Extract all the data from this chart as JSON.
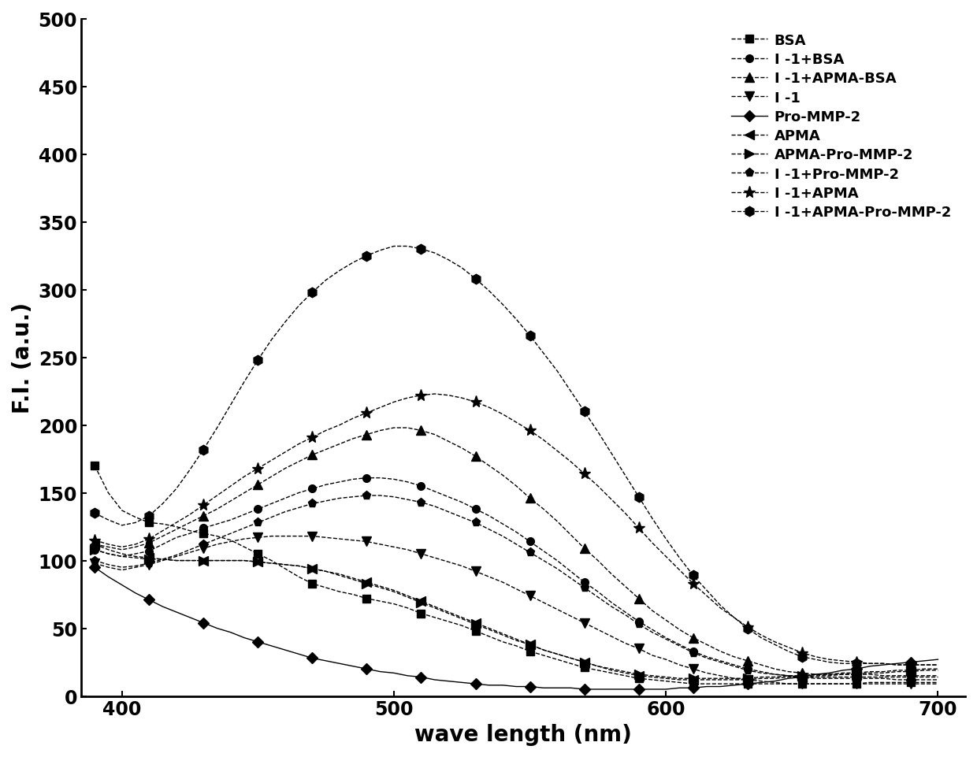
{
  "xlabel": "wave length (nm)",
  "ylabel": "F.I. (a.u.)",
  "xlim": [
    385,
    710
  ],
  "ylim": [
    0,
    500
  ],
  "yticks": [
    0,
    50,
    100,
    150,
    200,
    250,
    300,
    350,
    400,
    450,
    500
  ],
  "xticks": [
    400,
    500,
    600,
    700
  ],
  "background_color": "#ffffff",
  "series": [
    {
      "label": "BSA",
      "marker": "s",
      "linestyle": "--",
      "x": [
        390,
        395,
        400,
        405,
        410,
        415,
        420,
        425,
        430,
        435,
        440,
        445,
        450,
        455,
        460,
        465,
        470,
        475,
        480,
        485,
        490,
        495,
        500,
        505,
        510,
        515,
        520,
        525,
        530,
        535,
        540,
        545,
        550,
        555,
        560,
        565,
        570,
        575,
        580,
        585,
        590,
        595,
        600,
        605,
        610,
        615,
        620,
        625,
        630,
        635,
        640,
        645,
        650,
        655,
        660,
        665,
        670,
        675,
        680,
        685,
        690,
        695,
        700
      ],
      "y": [
        170,
        150,
        137,
        132,
        128,
        127,
        125,
        122,
        120,
        118,
        115,
        110,
        105,
        100,
        94,
        88,
        83,
        80,
        77,
        75,
        72,
        70,
        68,
        65,
        61,
        58,
        55,
        52,
        48,
        44,
        40,
        37,
        33,
        30,
        27,
        24,
        21,
        19,
        17,
        15,
        13,
        12,
        11,
        10,
        9,
        9,
        9,
        9,
        9,
        9,
        9,
        9,
        9,
        9,
        9,
        9,
        9,
        10,
        10,
        10,
        10,
        10,
        10
      ]
    },
    {
      "label": "Ⅰ -1+BSA",
      "marker": "o",
      "linestyle": "--",
      "x": [
        390,
        395,
        400,
        405,
        410,
        415,
        420,
        425,
        430,
        435,
        440,
        445,
        450,
        455,
        460,
        465,
        470,
        475,
        480,
        485,
        490,
        495,
        500,
        505,
        510,
        515,
        520,
        525,
        530,
        535,
        540,
        545,
        550,
        555,
        560,
        565,
        570,
        575,
        580,
        585,
        590,
        595,
        600,
        605,
        610,
        615,
        620,
        625,
        630,
        635,
        640,
        645,
        650,
        655,
        660,
        665,
        670,
        675,
        680,
        685,
        690,
        695,
        700
      ],
      "y": [
        108,
        105,
        103,
        105,
        107,
        112,
        117,
        120,
        124,
        127,
        130,
        134,
        138,
        142,
        146,
        150,
        153,
        156,
        158,
        160,
        161,
        161,
        160,
        158,
        155,
        151,
        147,
        143,
        138,
        133,
        127,
        121,
        114,
        107,
        100,
        92,
        84,
        77,
        69,
        62,
        55,
        49,
        43,
        38,
        33,
        29,
        26,
        23,
        20,
        18,
        16,
        15,
        14,
        13,
        13,
        13,
        13,
        13,
        13,
        12,
        12,
        12,
        12
      ]
    },
    {
      "label": "Ⅰ -1+APMA-BSA",
      "marker": "^",
      "linestyle": "--",
      "x": [
        390,
        395,
        400,
        405,
        410,
        415,
        420,
        425,
        430,
        435,
        440,
        445,
        450,
        455,
        460,
        465,
        470,
        475,
        480,
        485,
        490,
        495,
        500,
        505,
        510,
        515,
        520,
        525,
        530,
        535,
        540,
        545,
        550,
        555,
        560,
        565,
        570,
        575,
        580,
        585,
        590,
        595,
        600,
        605,
        610,
        615,
        620,
        625,
        630,
        635,
        640,
        645,
        650,
        655,
        660,
        665,
        670,
        675,
        680,
        685,
        690,
        695,
        700
      ],
      "y": [
        112,
        110,
        108,
        110,
        113,
        118,
        123,
        128,
        133,
        138,
        144,
        150,
        156,
        162,
        168,
        173,
        178,
        182,
        186,
        190,
        193,
        196,
        198,
        198,
        196,
        193,
        188,
        183,
        177,
        170,
        163,
        155,
        146,
        138,
        129,
        119,
        109,
        100,
        90,
        81,
        72,
        63,
        56,
        49,
        43,
        38,
        33,
        29,
        26,
        23,
        20,
        18,
        17,
        16,
        16,
        16,
        16,
        16,
        15,
        15,
        15,
        15,
        15
      ]
    },
    {
      "label": "Ⅰ -1",
      "marker": "v",
      "linestyle": "--",
      "x": [
        390,
        395,
        400,
        405,
        410,
        415,
        420,
        425,
        430,
        435,
        440,
        445,
        450,
        455,
        460,
        465,
        470,
        475,
        480,
        485,
        490,
        495,
        500,
        505,
        510,
        515,
        520,
        525,
        530,
        535,
        540,
        545,
        550,
        555,
        560,
        565,
        570,
        575,
        580,
        585,
        590,
        595,
        600,
        605,
        610,
        615,
        620,
        625,
        630,
        635,
        640,
        645,
        650,
        655,
        660,
        665,
        670,
        675,
        680,
        685,
        690,
        695,
        700
      ],
      "y": [
        98,
        95,
        93,
        95,
        97,
        100,
        103,
        106,
        109,
        112,
        114,
        116,
        117,
        118,
        118,
        118,
        118,
        117,
        116,
        115,
        114,
        112,
        110,
        108,
        105,
        102,
        99,
        96,
        92,
        88,
        84,
        79,
        74,
        69,
        64,
        59,
        54,
        49,
        44,
        39,
        35,
        30,
        27,
        23,
        20,
        17,
        15,
        13,
        12,
        11,
        10,
        9,
        9,
        9,
        9,
        9,
        9,
        9,
        9,
        9,
        9,
        9,
        9
      ]
    },
    {
      "label": "Pro-MMP-2",
      "marker": "D",
      "linestyle": "-",
      "x": [
        390,
        395,
        400,
        405,
        410,
        415,
        420,
        425,
        430,
        435,
        440,
        445,
        450,
        455,
        460,
        465,
        470,
        475,
        480,
        485,
        490,
        495,
        500,
        505,
        510,
        515,
        520,
        525,
        530,
        535,
        540,
        545,
        550,
        555,
        560,
        565,
        570,
        575,
        580,
        585,
        590,
        595,
        600,
        605,
        610,
        615,
        620,
        625,
        630,
        635,
        640,
        645,
        650,
        655,
        660,
        665,
        670,
        675,
        680,
        685,
        690,
        695,
        700
      ],
      "y": [
        95,
        88,
        82,
        76,
        71,
        66,
        62,
        58,
        54,
        50,
        47,
        43,
        40,
        37,
        34,
        31,
        28,
        26,
        24,
        22,
        20,
        18,
        17,
        15,
        14,
        12,
        11,
        10,
        9,
        8,
        8,
        7,
        7,
        6,
        6,
        6,
        5,
        5,
        5,
        5,
        5,
        5,
        5,
        6,
        6,
        7,
        7,
        8,
        9,
        10,
        11,
        13,
        14,
        16,
        17,
        19,
        20,
        22,
        23,
        24,
        25,
        26,
        27
      ]
    },
    {
      "label": "APMA",
      "marker": "<",
      "linestyle": "--",
      "x": [
        390,
        395,
        400,
        405,
        410,
        415,
        420,
        425,
        430,
        435,
        440,
        445,
        450,
        455,
        460,
        465,
        470,
        475,
        480,
        485,
        490,
        495,
        500,
        505,
        510,
        515,
        520,
        525,
        530,
        535,
        540,
        545,
        550,
        555,
        560,
        565,
        570,
        575,
        580,
        585,
        590,
        595,
        600,
        605,
        610,
        615,
        620,
        625,
        630,
        635,
        640,
        645,
        650,
        655,
        660,
        665,
        670,
        675,
        680,
        685,
        690,
        695,
        700
      ],
      "y": [
        112,
        108,
        105,
        103,
        102,
        101,
        100,
        100,
        100,
        100,
        100,
        100,
        99,
        98,
        97,
        96,
        94,
        92,
        90,
        87,
        84,
        81,
        78,
        74,
        70,
        66,
        62,
        58,
        54,
        50,
        46,
        42,
        38,
        34,
        31,
        28,
        25,
        22,
        19,
        17,
        15,
        14,
        13,
        12,
        12,
        12,
        12,
        12,
        12,
        13,
        13,
        14,
        14,
        15,
        15,
        16,
        16,
        17,
        17,
        18,
        18,
        19,
        19
      ]
    },
    {
      "label": "APMA-Pro-MMP-2",
      "marker": ">",
      "linestyle": "--",
      "x": [
        390,
        395,
        400,
        405,
        410,
        415,
        420,
        425,
        430,
        435,
        440,
        445,
        450,
        455,
        460,
        465,
        470,
        475,
        480,
        485,
        490,
        495,
        500,
        505,
        510,
        515,
        520,
        525,
        530,
        535,
        540,
        545,
        550,
        555,
        560,
        565,
        570,
        575,
        580,
        585,
        590,
        595,
        600,
        605,
        610,
        615,
        620,
        625,
        630,
        635,
        640,
        645,
        650,
        655,
        660,
        665,
        670,
        675,
        680,
        685,
        690,
        695,
        700
      ],
      "y": [
        108,
        105,
        103,
        102,
        101,
        101,
        100,
        100,
        100,
        100,
        100,
        100,
        99,
        98,
        97,
        96,
        94,
        92,
        89,
        86,
        83,
        80,
        77,
        73,
        69,
        65,
        61,
        57,
        53,
        49,
        45,
        41,
        38,
        34,
        31,
        28,
        25,
        22,
        20,
        18,
        16,
        15,
        14,
        13,
        13,
        13,
        13,
        13,
        13,
        14,
        14,
        15,
        15,
        16,
        16,
        17,
        17,
        18,
        18,
        19,
        19,
        20,
        20
      ]
    },
    {
      "label": "Ⅰ -1+Pro-MMP-2",
      "marker": "p",
      "linestyle": "--",
      "x": [
        390,
        395,
        400,
        405,
        410,
        415,
        420,
        425,
        430,
        435,
        440,
        445,
        450,
        455,
        460,
        465,
        470,
        475,
        480,
        485,
        490,
        495,
        500,
        505,
        510,
        515,
        520,
        525,
        530,
        535,
        540,
        545,
        550,
        555,
        560,
        565,
        570,
        575,
        580,
        585,
        590,
        595,
        600,
        605,
        610,
        615,
        620,
        625,
        630,
        635,
        640,
        645,
        650,
        655,
        660,
        665,
        670,
        675,
        680,
        685,
        690,
        695,
        700
      ],
      "y": [
        100,
        97,
        95,
        96,
        98,
        101,
        104,
        108,
        112,
        116,
        120,
        124,
        128,
        132,
        136,
        139,
        142,
        144,
        146,
        147,
        148,
        148,
        147,
        145,
        143,
        140,
        136,
        132,
        128,
        123,
        118,
        112,
        106,
        100,
        94,
        87,
        80,
        73,
        66,
        60,
        53,
        47,
        42,
        37,
        32,
        28,
        25,
        22,
        19,
        17,
        16,
        15,
        14,
        14,
        14,
        14,
        14,
        14,
        14,
        14,
        14,
        14,
        14
      ]
    },
    {
      "label": "Ⅰ -1+APMA",
      "marker": "*",
      "linestyle": "--",
      "x": [
        390,
        395,
        400,
        405,
        410,
        415,
        420,
        425,
        430,
        435,
        440,
        445,
        450,
        455,
        460,
        465,
        470,
        475,
        480,
        485,
        490,
        495,
        500,
        505,
        510,
        515,
        520,
        525,
        530,
        535,
        540,
        545,
        550,
        555,
        560,
        565,
        570,
        575,
        580,
        585,
        590,
        595,
        600,
        605,
        610,
        615,
        620,
        625,
        630,
        635,
        640,
        645,
        650,
        655,
        660,
        665,
        670,
        675,
        680,
        685,
        690,
        695,
        700
      ],
      "y": [
        115,
        112,
        110,
        112,
        116,
        122,
        128,
        134,
        141,
        148,
        155,
        162,
        168,
        174,
        180,
        186,
        191,
        196,
        200,
        205,
        209,
        213,
        217,
        220,
        222,
        223,
        222,
        220,
        217,
        213,
        208,
        202,
        196,
        189,
        181,
        173,
        164,
        155,
        145,
        135,
        124,
        113,
        103,
        93,
        83,
        74,
        65,
        58,
        51,
        45,
        40,
        36,
        32,
        29,
        27,
        26,
        25,
        24,
        24,
        23,
        23,
        23,
        23
      ]
    },
    {
      "label": "Ⅰ -1+APMA-Pro-MMP-2",
      "marker": "h",
      "linestyle": "--",
      "x": [
        390,
        395,
        400,
        405,
        410,
        415,
        420,
        425,
        430,
        435,
        440,
        445,
        450,
        455,
        460,
        465,
        470,
        475,
        480,
        485,
        490,
        495,
        500,
        505,
        510,
        515,
        520,
        525,
        530,
        535,
        540,
        545,
        550,
        555,
        560,
        565,
        570,
        575,
        580,
        585,
        590,
        595,
        600,
        605,
        610,
        615,
        620,
        625,
        630,
        635,
        640,
        645,
        650,
        655,
        660,
        665,
        670,
        675,
        680,
        685,
        690,
        695,
        700
      ],
      "y": [
        135,
        130,
        126,
        128,
        133,
        142,
        153,
        167,
        182,
        198,
        215,
        232,
        248,
        263,
        276,
        288,
        298,
        307,
        314,
        320,
        325,
        329,
        332,
        332,
        330,
        327,
        322,
        316,
        308,
        299,
        289,
        278,
        266,
        253,
        240,
        225,
        210,
        195,
        179,
        163,
        147,
        131,
        116,
        102,
        89,
        78,
        67,
        58,
        50,
        43,
        38,
        33,
        29,
        27,
        25,
        24,
        24,
        24,
        24,
        23,
        23,
        23,
        23
      ]
    }
  ]
}
